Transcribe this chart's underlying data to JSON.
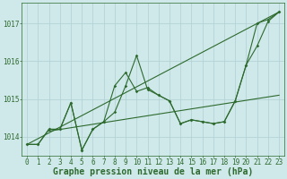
{
  "x": [
    0,
    1,
    2,
    3,
    4,
    5,
    6,
    7,
    8,
    9,
    10,
    11,
    12,
    13,
    14,
    15,
    16,
    17,
    18,
    19,
    20,
    21,
    22,
    23
  ],
  "line_jagged": [
    1013.8,
    1013.8,
    1014.2,
    1014.2,
    1014.9,
    1013.65,
    1014.2,
    1014.4,
    1015.35,
    1015.7,
    1015.2,
    1015.3,
    1015.1,
    1014.95,
    1014.35,
    1014.45,
    1014.4,
    1014.35,
    1014.4,
    1014.95,
    1015.9,
    1016.4,
    1017.05,
    1017.3
  ],
  "line_upper": [
    1013.8,
    1013.8,
    1014.2,
    1014.2,
    1014.9,
    1013.65,
    1014.2,
    1014.4,
    1014.65,
    1015.35,
    1016.15,
    1015.25,
    1015.1,
    1014.95,
    1014.35,
    1014.45,
    1014.4,
    1014.35,
    1014.4,
    1014.95,
    1015.9,
    1017.0,
    1017.1,
    1017.3
  ],
  "trend1_x": [
    0,
    23
  ],
  "trend1_y": [
    1013.8,
    1017.3
  ],
  "trend2_x": [
    2,
    23
  ],
  "trend2_y": [
    1014.15,
    1015.1
  ],
  "ylim": [
    1013.5,
    1017.55
  ],
  "yticks": [
    1014,
    1015,
    1016,
    1017
  ],
  "xticks": [
    0,
    1,
    2,
    3,
    4,
    5,
    6,
    7,
    8,
    9,
    10,
    11,
    12,
    13,
    14,
    15,
    16,
    17,
    18,
    19,
    20,
    21,
    22,
    23
  ],
  "line_color": "#2d6a2d",
  "bg_color": "#cfe8ea",
  "grid_color": "#b0d0d2",
  "xlabel": "Graphe pression niveau de la mer (hPa)",
  "xlabel_color": "#2d6a2d",
  "tick_color": "#2d6a2d",
  "tick_fontsize": 5.5,
  "axis_label_fontsize": 7.0
}
